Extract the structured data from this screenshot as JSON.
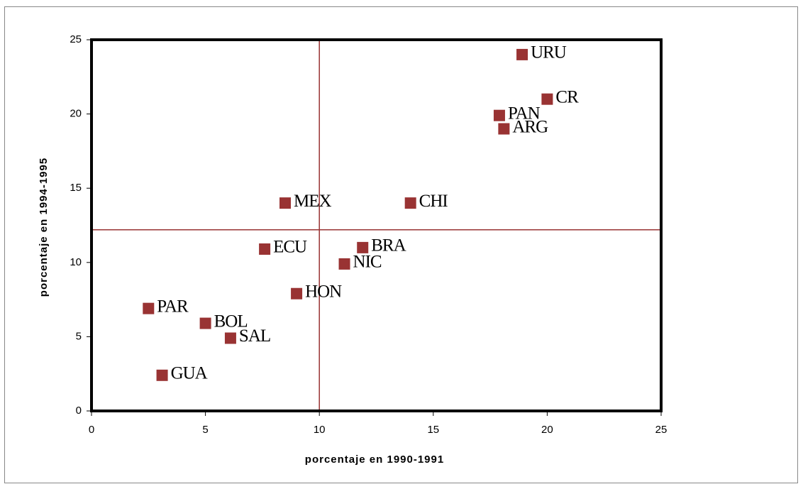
{
  "chart_data": {
    "type": "scatter",
    "xlabel": "porcentaje en 1990-1991",
    "ylabel": "porcentaje en 1994-1995",
    "xlim": [
      0,
      25
    ],
    "xticks": [
      0,
      5,
      10,
      15,
      20,
      25
    ],
    "ylim": [
      0,
      25
    ],
    "yticks": [
      0,
      5,
      10,
      15,
      20,
      25
    ],
    "reference_lines": {
      "x": 10,
      "y": 12.2,
      "color": "#993333"
    },
    "series": [
      {
        "color": "#993333",
        "labels": [
          "URU",
          "CR",
          "PAN",
          "ARG",
          "MEX",
          "CHI",
          "ECU",
          "BRA",
          "NIC",
          "HON",
          "PAR",
          "BOL",
          "SAL",
          "GUA"
        ],
        "x": [
          18.9,
          20.0,
          17.9,
          18.1,
          8.5,
          14.0,
          7.6,
          11.9,
          11.1,
          9.0,
          2.5,
          5.0,
          6.1,
          3.1
        ],
        "values": [
          24.0,
          21.0,
          19.9,
          19.0,
          14.0,
          14.0,
          10.9,
          11.0,
          9.9,
          7.9,
          6.9,
          5.9,
          4.9,
          2.4
        ]
      }
    ]
  }
}
